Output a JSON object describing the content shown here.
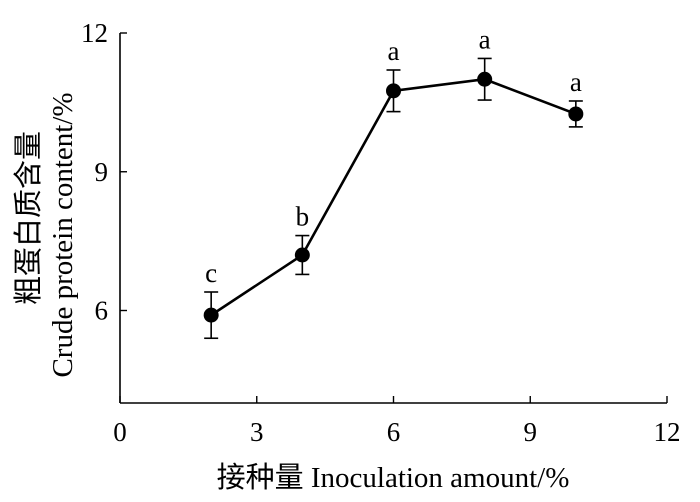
{
  "chart_data": {
    "type": "line",
    "title": "",
    "xlabel": "接种量  Inoculation amount/%",
    "ylabel_line1": "粗蛋白质含量",
    "ylabel_line2": "Crude protein content/%",
    "xlim": [
      0,
      12
    ],
    "ylim": [
      4,
      12
    ],
    "x_ticks": [
      0,
      3,
      6,
      9,
      12
    ],
    "y_ticks": [
      6,
      9,
      12
    ],
    "grid": false,
    "legend": "none",
    "series": [
      {
        "x": [
          2,
          4,
          6,
          8,
          10
        ],
        "y": [
          5.9,
          7.2,
          10.75,
          11.0,
          10.25
        ],
        "error": [
          0.5,
          0.42,
          0.45,
          0.45,
          0.28
        ],
        "significance": [
          "c",
          "b",
          "a",
          "a",
          "a"
        ]
      }
    ]
  },
  "colors": {
    "line": "#000000",
    "marker": "#000000",
    "axis": "#000000"
  }
}
